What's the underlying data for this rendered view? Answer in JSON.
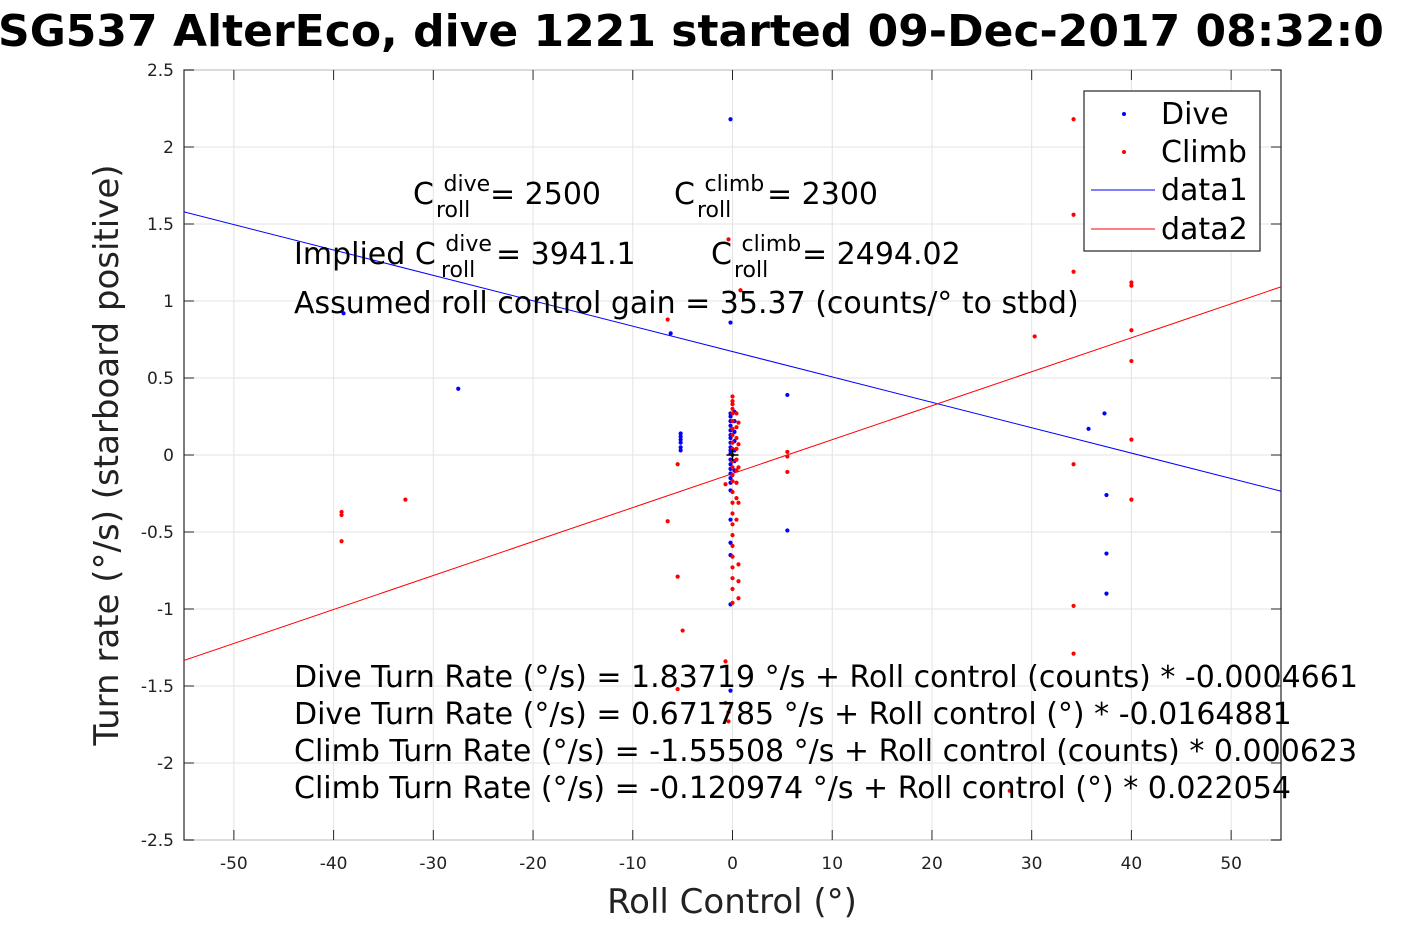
{
  "chart_data": {
    "type": "scatter",
    "title": "SG537 AlterEco, dive 1221 started 09-Dec-2017 08:32:0",
    "xlabel": "Roll Control (°)",
    "ylabel": "Turn rate (°/s) (starboard positive)",
    "xlim": [
      -55,
      55
    ],
    "ylim": [
      -2.5,
      2.5
    ],
    "grid": true,
    "x_ticks": [
      "-50",
      "-40",
      "-30",
      "-20",
      "-10",
      "0",
      "10",
      "20",
      "30",
      "40",
      "50"
    ],
    "y_ticks": [
      "2.5",
      "2",
      "1.5",
      "1",
      "0.5",
      "0",
      "-0.5",
      "-1",
      "-1.5",
      "-2",
      "-2.5"
    ],
    "legend_position": "top-right",
    "series": [
      {
        "name": "Dive",
        "kind": "points",
        "color": "#0000ff",
        "points": [
          [
            -39.0,
            0.92
          ],
          [
            -27.5,
            0.43
          ],
          [
            -6.2,
            0.79
          ],
          [
            -5.2,
            0.14
          ],
          [
            -5.2,
            0.12
          ],
          [
            -5.2,
            0.1
          ],
          [
            -5.2,
            0.08
          ],
          [
            -5.2,
            0.05
          ],
          [
            -5.2,
            0.03
          ],
          [
            -0.2,
            2.18
          ],
          [
            -0.2,
            0.86
          ],
          [
            -0.2,
            0.27
          ],
          [
            -0.2,
            0.25
          ],
          [
            -0.2,
            0.22
          ],
          [
            -0.2,
            0.19
          ],
          [
            -0.2,
            0.16
          ],
          [
            -0.2,
            0.13
          ],
          [
            -0.2,
            0.11
          ],
          [
            -0.2,
            0.08
          ],
          [
            -0.2,
            0.05
          ],
          [
            -0.2,
            0.03
          ],
          [
            -0.2,
            0.01
          ],
          [
            -0.2,
            -0.03
          ],
          [
            -0.2,
            -0.06
          ],
          [
            -0.2,
            -0.09
          ],
          [
            -0.2,
            -0.12
          ],
          [
            -0.2,
            -0.15
          ],
          [
            -0.2,
            -0.18
          ],
          [
            -0.2,
            -0.23
          ],
          [
            -0.2,
            -0.42
          ],
          [
            -0.2,
            -0.57
          ],
          [
            -0.2,
            -0.65
          ],
          [
            -0.2,
            -0.97
          ],
          [
            -0.2,
            -1.53
          ],
          [
            0.2,
            0.28
          ],
          [
            0.2,
            0.22
          ],
          [
            0.2,
            0.15
          ],
          [
            0.2,
            0.09
          ],
          [
            0.2,
            0.03
          ],
          [
            0.2,
            -0.04
          ],
          [
            0.2,
            -0.1
          ],
          [
            5.5,
            0.39
          ],
          [
            5.5,
            -0.49
          ],
          [
            35.7,
            0.17
          ],
          [
            37.3,
            0.27
          ],
          [
            37.5,
            -0.26
          ],
          [
            37.5,
            -0.64
          ],
          [
            37.5,
            -0.9
          ]
        ]
      },
      {
        "name": "Climb",
        "kind": "points",
        "color": "#ff0000",
        "points": [
          [
            -39.2,
            -0.37
          ],
          [
            -39.2,
            -0.39
          ],
          [
            -39.2,
            -0.56
          ],
          [
            -32.8,
            -0.29
          ],
          [
            -6.5,
            0.88
          ],
          [
            -6.5,
            -0.43
          ],
          [
            -5.5,
            -0.06
          ],
          [
            -5.5,
            -0.79
          ],
          [
            -5.5,
            -1.52
          ],
          [
            -5.0,
            -1.14
          ],
          [
            -0.7,
            -1.34
          ],
          [
            -0.7,
            -1.61
          ],
          [
            -0.7,
            -0.19
          ],
          [
            -0.4,
            1.4
          ],
          [
            -0.4,
            -1.67
          ],
          [
            -0.4,
            -1.73
          ],
          [
            0.0,
            0.38
          ],
          [
            0.0,
            0.35
          ],
          [
            0.0,
            0.33
          ],
          [
            0.0,
            0.3
          ],
          [
            0.0,
            0.27
          ],
          [
            0.0,
            0.22
          ],
          [
            0.0,
            0.17
          ],
          [
            0.0,
            0.13
          ],
          [
            0.0,
            0.08
          ],
          [
            0.0,
            0.04
          ],
          [
            0.0,
            0.0
          ],
          [
            0.0,
            -0.04
          ],
          [
            0.0,
            -0.08
          ],
          [
            0.0,
            -0.13
          ],
          [
            0.0,
            -0.17
          ],
          [
            0.0,
            -0.24
          ],
          [
            0.0,
            -0.31
          ],
          [
            0.0,
            -0.38
          ],
          [
            0.0,
            -0.45
          ],
          [
            0.0,
            -0.52
          ],
          [
            0.0,
            -0.59
          ],
          [
            0.0,
            -0.66
          ],
          [
            0.0,
            -0.73
          ],
          [
            0.0,
            -0.8
          ],
          [
            0.0,
            -0.87
          ],
          [
            0.0,
            -0.96
          ],
          [
            0.4,
            0.27
          ],
          [
            0.4,
            0.18
          ],
          [
            0.4,
            0.11
          ],
          [
            0.4,
            0.04
          ],
          [
            0.4,
            -0.03
          ],
          [
            0.4,
            -0.1
          ],
          [
            0.4,
            -0.18
          ],
          [
            0.4,
            -0.28
          ],
          [
            0.4,
            -0.42
          ],
          [
            0.6,
            0.21
          ],
          [
            0.6,
            0.07
          ],
          [
            0.6,
            -0.08
          ],
          [
            0.6,
            -0.31
          ],
          [
            0.6,
            -0.71
          ],
          [
            0.6,
            -0.82
          ],
          [
            0.6,
            -0.93
          ],
          [
            0.8,
            1.07
          ],
          [
            5.5,
            0.02
          ],
          [
            5.5,
            -0.01
          ],
          [
            5.5,
            -0.11
          ],
          [
            27.8,
            -2.18
          ],
          [
            30.3,
            0.77
          ],
          [
            34.2,
            2.18
          ],
          [
            34.2,
            1.56
          ],
          [
            34.2,
            1.19
          ],
          [
            34.2,
            -0.06
          ],
          [
            34.2,
            -0.98
          ],
          [
            34.2,
            -1.29
          ],
          [
            40.0,
            1.12
          ],
          [
            40.0,
            1.1
          ],
          [
            40.0,
            0.81
          ],
          [
            40.0,
            0.61
          ],
          [
            40.0,
            0.1
          ],
          [
            40.0,
            -0.29
          ]
        ]
      },
      {
        "name": "data1",
        "kind": "line",
        "color": "#0000ff",
        "intercept": 0.671785,
        "slope": -0.0164881
      },
      {
        "name": "data2",
        "kind": "line",
        "color": "#ff0000",
        "intercept": -0.120974,
        "slope": 0.022054
      }
    ],
    "annotations": {
      "c_roll_dive": {
        "prefix": "C",
        "sup": "dive",
        "sub": "roll",
        "suffix": " = 2500"
      },
      "c_roll_climb": {
        "prefix": "C",
        "sup": "climb",
        "sub": "roll",
        "suffix": " = 2300"
      },
      "implied_dive": {
        "prefix": "Implied C",
        "sup": "dive",
        "sub": "roll",
        "suffix": " = 3941.1"
      },
      "implied_climb": {
        "prefix": "C",
        "sup": "climb",
        "sub": "roll",
        "suffix": " = 2494.02"
      },
      "gain": "Assumed roll control gain = 35.37 (counts/° to stbd)",
      "eq1": "Dive Turn Rate (°/s) = 1.83719 °/s + Roll control (counts) * -0.0004661",
      "eq2": "Dive Turn Rate (°/s) = 0.671785 °/s + Roll control (°) * -0.0164881",
      "eq3": "Climb Turn Rate (°/s) = -1.55508 °/s + Roll control (counts) * 0.000623",
      "eq4": "Climb Turn Rate (°/s) = -0.120974 °/s + Roll control (°) * 0.022054"
    }
  }
}
